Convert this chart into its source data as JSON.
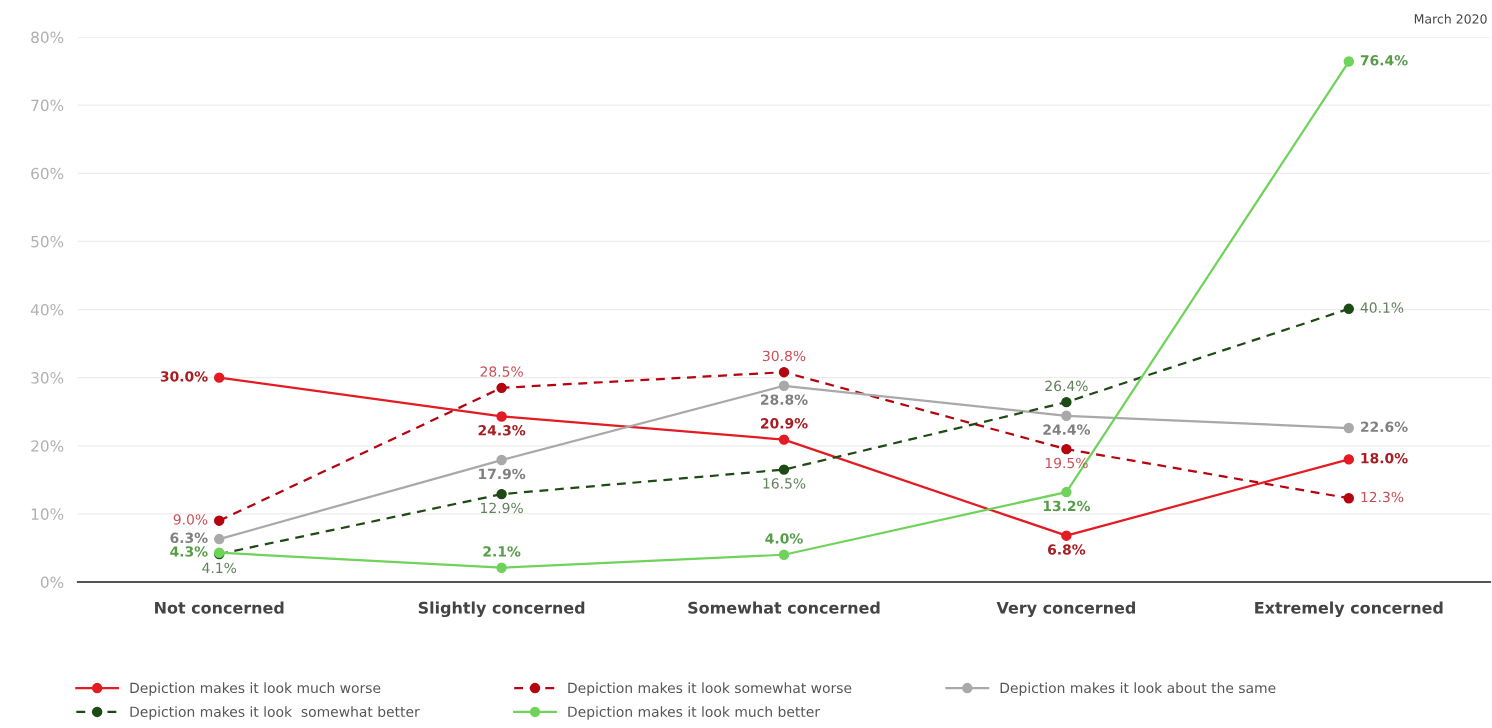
{
  "chart_data": {
    "type": "line",
    "categories": [
      "Not concerned",
      "Slightly concerned",
      "Somewhat concerned",
      "Very concerned",
      "Extremely concerned"
    ],
    "ylim": [
      0,
      80
    ],
    "yticks": [
      {
        "value": 0,
        "label": "0%"
      },
      {
        "value": 10,
        "label": "10%"
      },
      {
        "value": 20,
        "label": "20%"
      },
      {
        "value": 30,
        "label": "30%"
      },
      {
        "value": 40,
        "label": "40%"
      },
      {
        "value": 50,
        "label": "50%"
      },
      {
        "value": 60,
        "label": "60%"
      },
      {
        "value": 70,
        "label": "70%"
      },
      {
        "value": 80,
        "label": "80%"
      }
    ],
    "grid": "y",
    "legend": "bottom",
    "marker": "circle",
    "annotations": [
      "March 2020"
    ],
    "series": [
      {
        "name": "Depiction makes it look much worse",
        "color": "#e31b23",
        "line_style": "solid",
        "values": [
          30.0,
          24.3,
          20.9,
          6.8,
          18.0
        ],
        "value_labels": [
          "30.0%",
          "24.3%",
          "20.9%",
          "6.8%",
          "18.0%"
        ]
      },
      {
        "name": "Depiction makes it look somewhat worse",
        "color": "#b5040f",
        "line_style": "dashed",
        "values": [
          9.0,
          28.5,
          30.8,
          19.5,
          12.3
        ],
        "value_labels": [
          "9.0%",
          "28.5%",
          "30.8%",
          "19.5%",
          "12.3%"
        ]
      },
      {
        "name": "Depiction makes it look about the same",
        "color": "#a9a9a9",
        "line_style": "solid",
        "values": [
          6.3,
          17.9,
          28.8,
          24.4,
          22.6
        ],
        "value_labels": [
          "6.3%",
          "17.9%",
          "28.8%",
          "24.4%",
          "22.6%"
        ]
      },
      {
        "name": "Depiction makes it look  somewhat better",
        "color": "#1d4a15",
        "line_style": "dashed",
        "values": [
          4.1,
          12.9,
          16.5,
          26.4,
          40.1
        ],
        "value_labels": [
          "4.1%",
          "12.9%",
          "16.5%",
          "26.4%",
          "40.1%"
        ]
      },
      {
        "name": "Depiction makes it look much better",
        "color": "#6fd35b",
        "line_style": "solid",
        "values": [
          4.3,
          2.1,
          4.0,
          13.2,
          76.4
        ],
        "value_labels": [
          "4.3%",
          "2.1%",
          "4.0%",
          "13.2%",
          "76.4%"
        ]
      }
    ]
  }
}
